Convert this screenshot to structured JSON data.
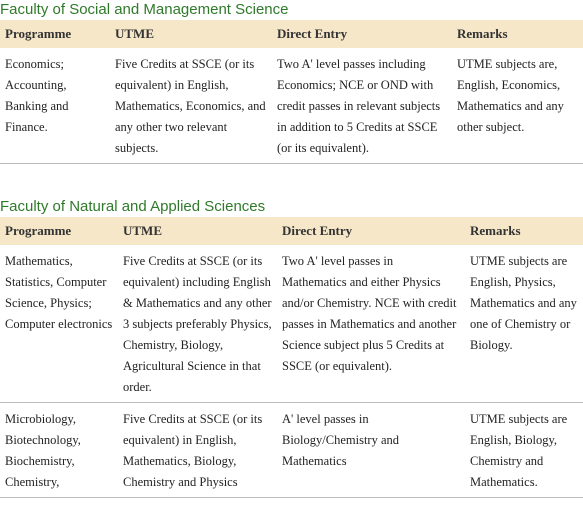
{
  "sections": [
    {
      "title": "Faculty of Social and Management Science",
      "table": {
        "header": [
          "Programme",
          "UTME",
          "Direct Entry",
          "Remarks"
        ],
        "rows": [
          [
            "Economics; Accounting, Banking and Finance.",
            "Five Credits at SSCE (or its equivalent) in English, Mathematics, Economics, and any other two relevant subjects.",
            "Two A' level passes including Economics; NCE or OND with credit passes in relevant subjects in addition to 5 Credits at SSCE (or its equivalent).",
            "UTME subjects are, English, Economics, Mathematics and any other subject."
          ]
        ]
      }
    },
    {
      "title": "Faculty of Natural and Applied Sciences",
      "table": {
        "header": [
          "Programme",
          "UTME",
          "Direct Entry",
          "Remarks"
        ],
        "rows": [
          [
            "Mathematics, Statistics, Computer Science, Physics; Computer electronics",
            "Five Credits at SSCE (or its equivalent) including English & Mathematics and any other 3 subjects preferably Physics, Chemistry, Biology, Agricultural Science in that order.",
            "Two A' level passes in Mathematics and either Physics and/or Chemistry. NCE with credit passes in Mathematics and another Science subject plus 5 Credits at SSCE (or equivalent).",
            "UTME subjects are English, Physics, Mathematics and any one of Chemistry or Biology."
          ],
          [
            "Microbiology, Biotechnology, Biochemistry, Chemistry,",
            "Five Credits at SSCE (or its equivalent) in English, Mathematics, Biology, Chemistry and Physics",
            "A' level passes in Biology/Chemistry and Mathematics",
            "UTME subjects are English, Biology, Chemistry and Mathematics."
          ]
        ]
      }
    }
  ]
}
